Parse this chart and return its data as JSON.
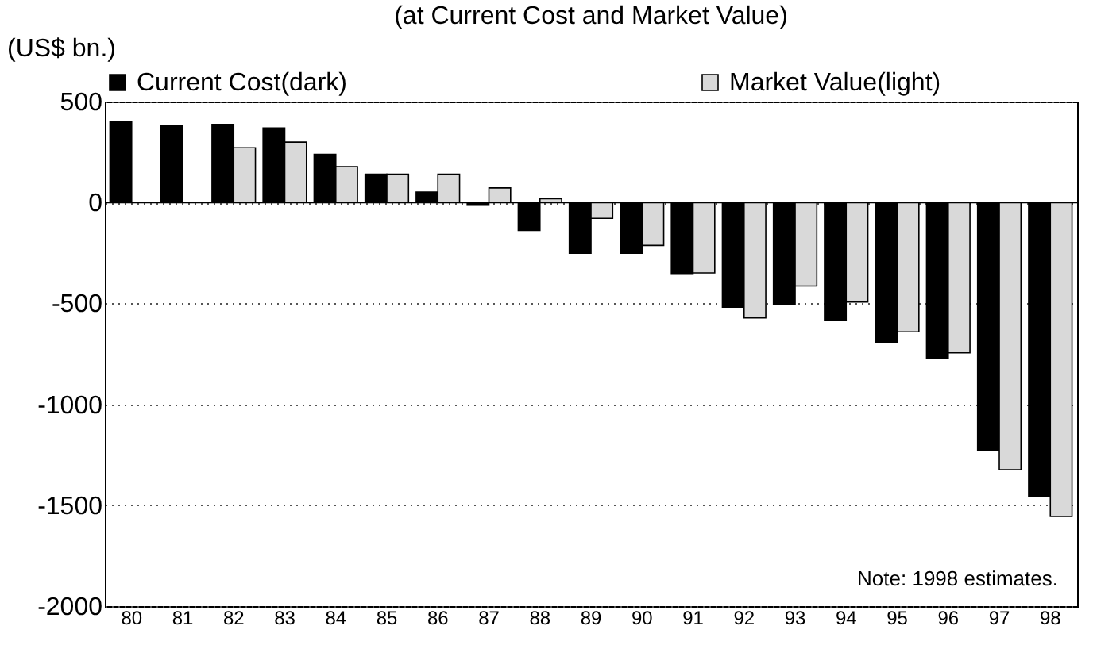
{
  "chart_data": {
    "type": "bar",
    "title": "(at Current Cost and Market Value)",
    "ylabel": "(US$ bn.)",
    "categories": [
      "80",
      "81",
      "82",
      "83",
      "84",
      "85",
      "86",
      "87",
      "88",
      "89",
      "90",
      "91",
      "92",
      "93",
      "94",
      "95",
      "96",
      "97",
      "98"
    ],
    "series": [
      {
        "name": "Current Cost(dark)",
        "color": "#000000",
        "values": [
          400,
          381,
          387,
          369,
          238,
          140,
          52,
          -14,
          -139,
          -252,
          -252,
          -356,
          -519,
          -507,
          -586,
          -692,
          -771,
          -1229,
          -1456
        ]
      },
      {
        "name": "Market Value(light)",
        "color": "#d9d9d9",
        "values": [
          null,
          null,
          271,
          299,
          177,
          140,
          140,
          72,
          19,
          -79,
          -213,
          -349,
          -572,
          -414,
          -493,
          -641,
          -745,
          -1324,
          -1556
        ]
      }
    ],
    "ylim": [
      -2000,
      500
    ],
    "yticks": [
      -2000,
      -1500,
      -1000,
      -500,
      0,
      500
    ],
    "grid": "y",
    "legend": "top",
    "annotations": [
      "Note: 1998 estimates."
    ]
  }
}
